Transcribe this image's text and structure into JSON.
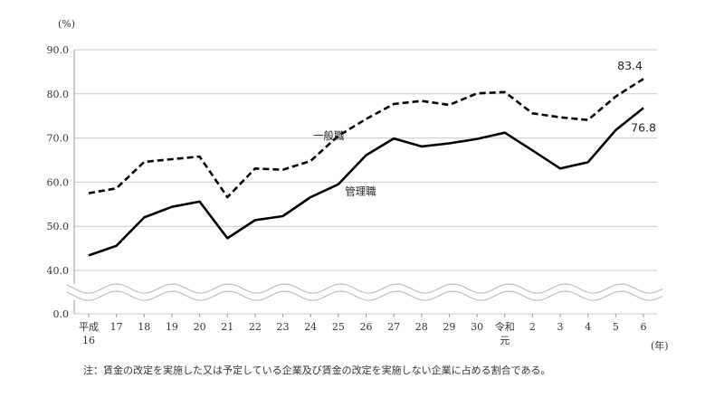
{
  "chart_data": {
    "type": "line",
    "ylabel": "(%)",
    "xlabel": "(年)",
    "ylim": [
      40,
      90
    ],
    "axis_break": true,
    "y_ticks": [
      "90.0",
      "80.0",
      "70.0",
      "60.0",
      "50.0",
      "40.0"
    ],
    "y_zero_label": "0.0",
    "grid": true,
    "x": [
      "平成16",
      "17",
      "18",
      "19",
      "20",
      "21",
      "22",
      "23",
      "24",
      "25",
      "26",
      "27",
      "28",
      "29",
      "30",
      "令和元",
      "2",
      "3",
      "4",
      "5",
      "6"
    ],
    "x_tick_labels": [
      [
        "平成",
        "16"
      ],
      [
        "17"
      ],
      [
        "18"
      ],
      [
        "19"
      ],
      [
        "20"
      ],
      [
        "21"
      ],
      [
        "22"
      ],
      [
        "23"
      ],
      [
        "24"
      ],
      [
        "25"
      ],
      [
        "26"
      ],
      [
        "27"
      ],
      [
        "28"
      ],
      [
        "29"
      ],
      [
        "30"
      ],
      [
        "令和",
        "元"
      ],
      [
        "2"
      ],
      [
        "3"
      ],
      [
        "4"
      ],
      [
        "5"
      ],
      [
        "6"
      ]
    ],
    "series": [
      {
        "name": "一般職",
        "style": "dashed",
        "color": "#000000",
        "values": [
          57.5,
          58.6,
          64.6,
          65.2,
          65.8,
          56.6,
          63.1,
          62.8,
          64.8,
          70.5,
          74.3,
          77.7,
          78.4,
          77.5,
          80.1,
          80.4,
          75.6,
          74.7,
          74.1,
          79.4,
          83.4
        ],
        "end_label": "83.4"
      },
      {
        "name": "管理職",
        "style": "solid",
        "color": "#000000",
        "values": [
          43.4,
          45.6,
          52.0,
          54.4,
          55.6,
          47.3,
          51.4,
          52.3,
          56.6,
          59.5,
          66.1,
          69.9,
          68.1,
          68.8,
          69.8,
          71.2,
          67.2,
          63.1,
          64.5,
          71.8,
          76.8
        ],
        "end_label": "76.8"
      }
    ],
    "note": "注：賃金の改定を実施した又は予定している企業及び賃金の改定を実施しない企業に占める割合である。"
  }
}
